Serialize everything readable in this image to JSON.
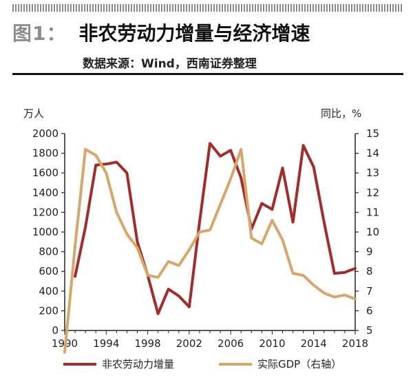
{
  "header": {
    "figure_label": "图1：",
    "title": "非农劳动力增量与经济增速",
    "subtitle": "数据来源：Wind，西南证券整理"
  },
  "axes": {
    "left_unit": "万人",
    "right_unit": "同比，%"
  },
  "colors": {
    "labor": "#a52a2a",
    "gdp": "#d9a66a",
    "axis": "#222222"
  },
  "legend": {
    "labor": "非农劳动力增量",
    "gdp": "实际GDP（右轴）"
  },
  "chart_data": {
    "type": "line",
    "title": "非农劳动力增量与经济增速",
    "x_ticks": [
      1990,
      1994,
      1998,
      2002,
      2006,
      2010,
      2014,
      2018
    ],
    "y_left": {
      "label": "万人",
      "min": 0,
      "max": 2000,
      "ticks": [
        0,
        200,
        400,
        600,
        800,
        1000,
        1200,
        1400,
        1600,
        1800,
        2000
      ]
    },
    "y_right": {
      "label": "同比，%",
      "min": 5,
      "max": 15,
      "ticks": [
        5,
        6,
        7,
        8,
        9,
        10,
        11,
        12,
        13,
        14,
        15
      ]
    },
    "grid": false,
    "legend_position": "bottom",
    "series": [
      {
        "name": "非农劳动力增量",
        "axis": "left",
        "x": [
          1991,
          1992,
          1993,
          1994,
          1995,
          1996,
          1997,
          1998,
          1999,
          2000,
          2001,
          2002,
          2003,
          2004,
          2005,
          2006,
          2007,
          2008,
          2009,
          2010,
          2011,
          2012,
          2013,
          2014,
          2015,
          2016,
          2017,
          2018
        ],
        "values": [
          550,
          1050,
          1680,
          1690,
          1710,
          1600,
          900,
          560,
          170,
          420,
          350,
          240,
          1100,
          1900,
          1770,
          1830,
          1550,
          1030,
          1290,
          1230,
          1650,
          1100,
          1880,
          1660,
          1100,
          580,
          590,
          630
        ]
      },
      {
        "name": "实际GDP（右轴）",
        "axis": "right",
        "x": [
          1990,
          1991,
          1992,
          1993,
          1994,
          1995,
          1996,
          1997,
          1998,
          1999,
          2000,
          2001,
          2002,
          2003,
          2004,
          2005,
          2006,
          2007,
          2008,
          2009,
          2010,
          2011,
          2012,
          2013,
          2014,
          2015,
          2016,
          2017,
          2018
        ],
        "values": [
          3.9,
          9.3,
          14.2,
          13.9,
          13.0,
          11.0,
          9.9,
          9.2,
          7.8,
          7.7,
          8.5,
          8.3,
          9.1,
          10.0,
          10.1,
          11.4,
          12.7,
          14.2,
          9.7,
          9.4,
          10.6,
          9.6,
          7.9,
          7.8,
          7.3,
          6.9,
          6.7,
          6.8,
          6.6
        ]
      }
    ]
  }
}
